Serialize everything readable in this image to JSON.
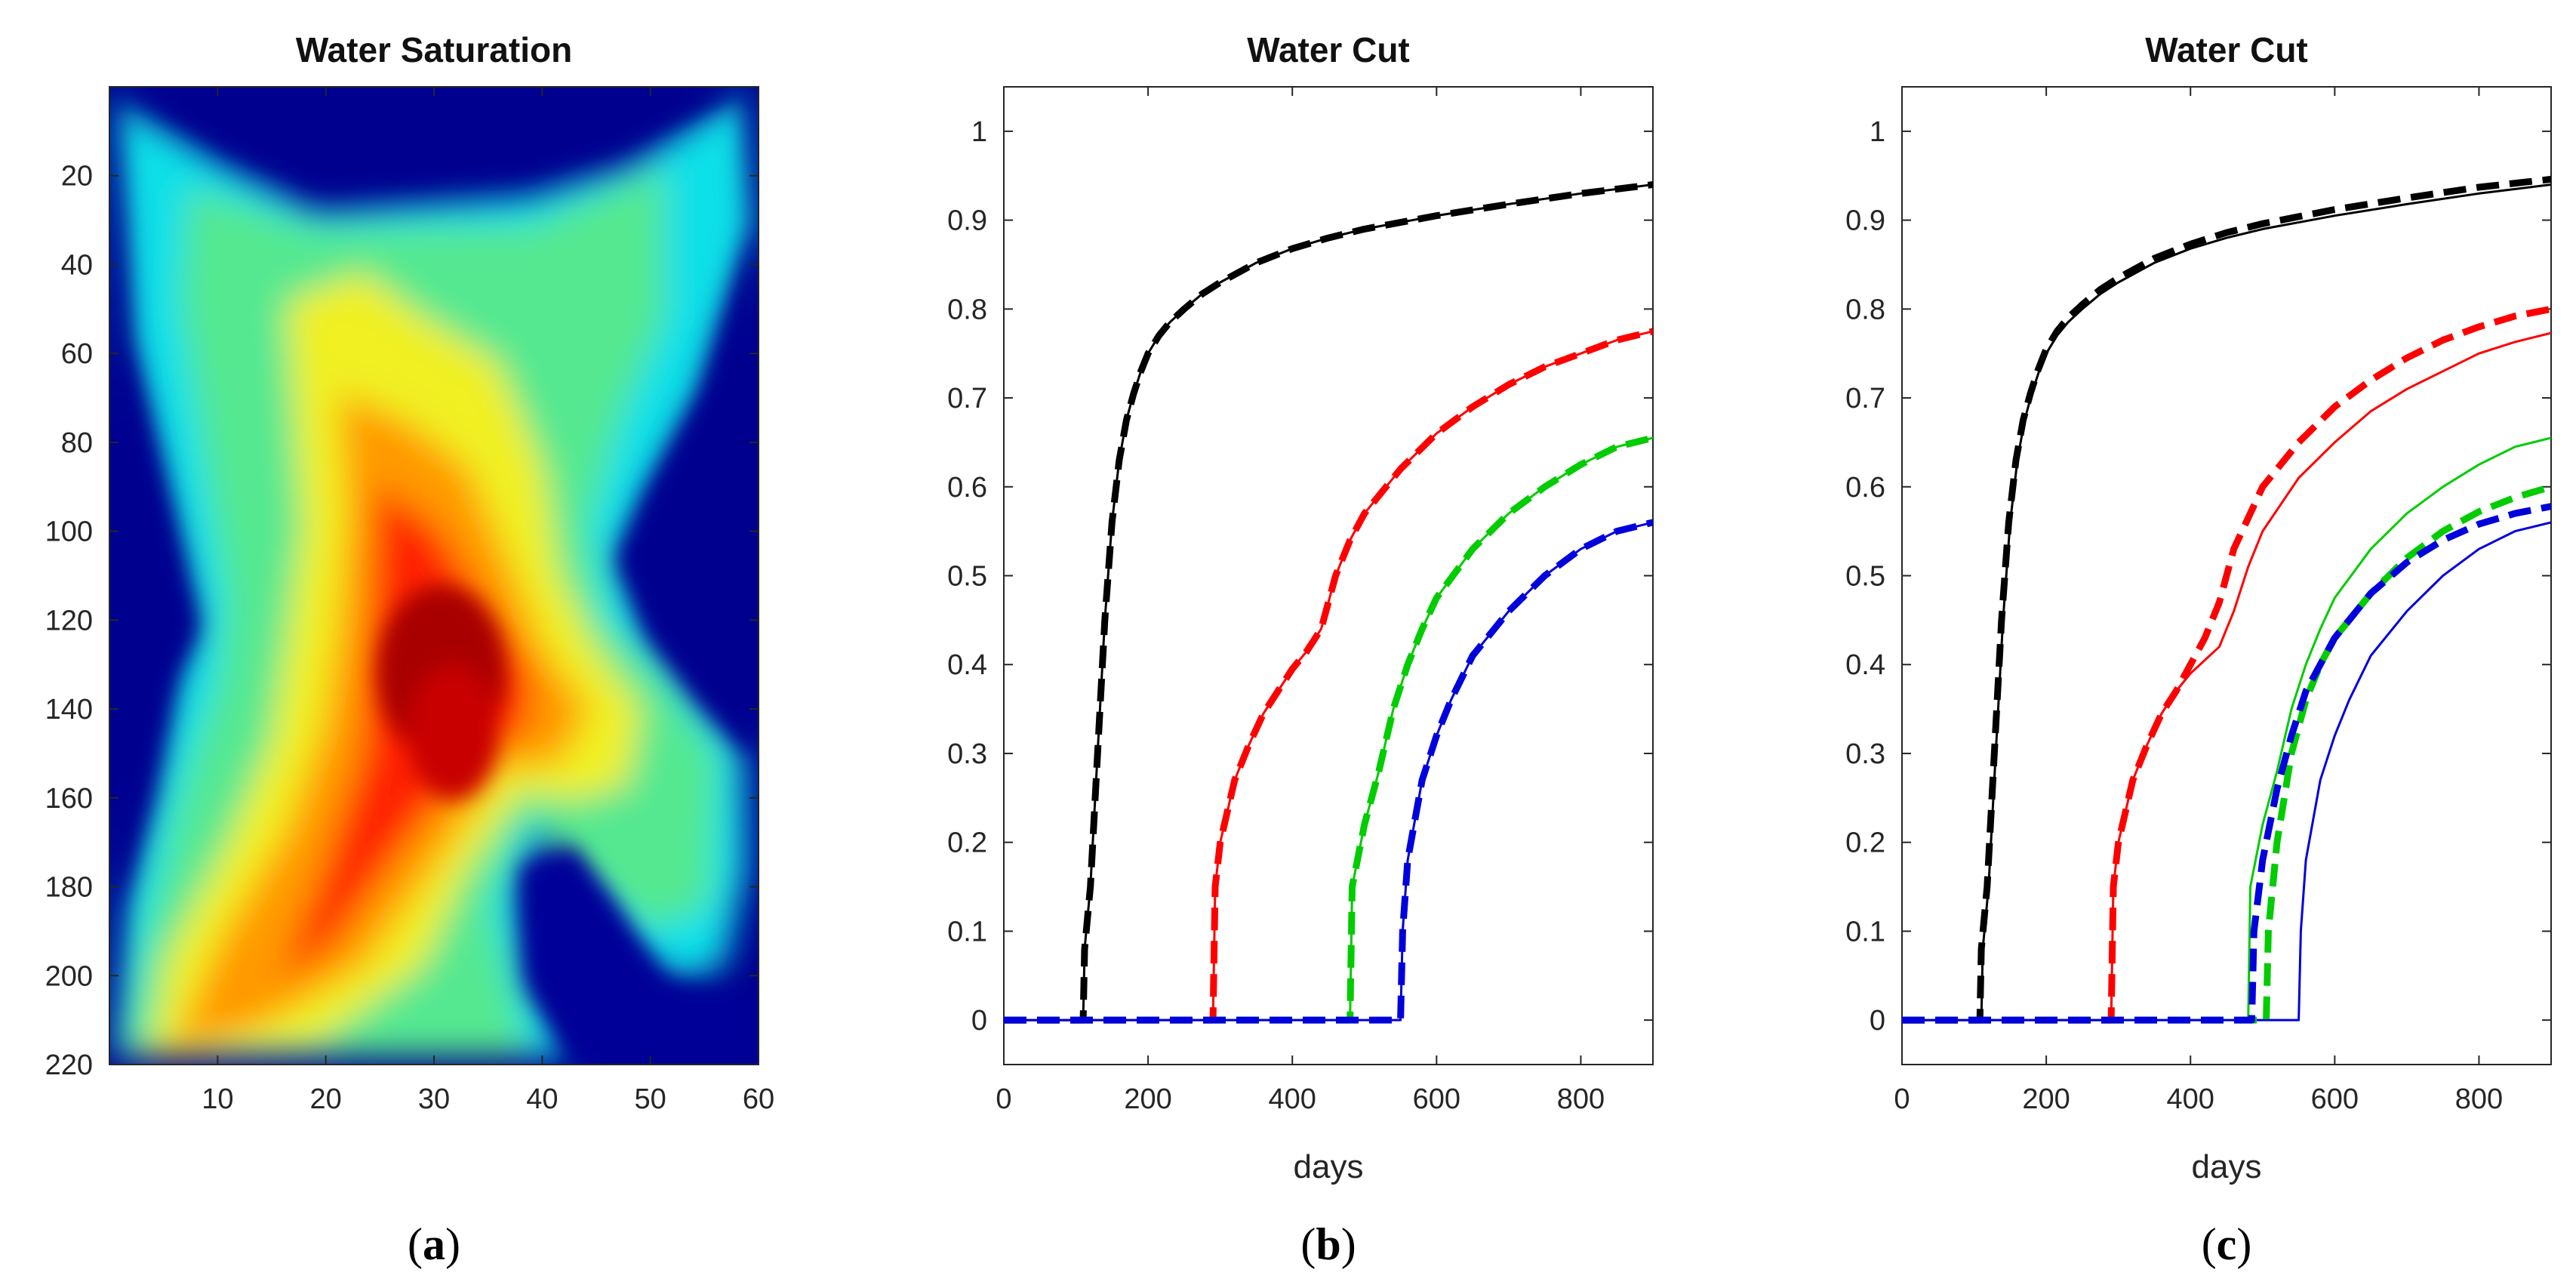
{
  "figure": {
    "captions": [
      "a",
      "b",
      "c"
    ]
  },
  "chart_data": [
    {
      "type": "heatmap",
      "title": "Water Saturation",
      "xlabel": "",
      "ylabel": "",
      "xlim": [
        0,
        60
      ],
      "ylim": [
        220,
        0
      ],
      "x_ticks": [
        10,
        20,
        30,
        40,
        50,
        60
      ],
      "y_ticks": [
        20,
        40,
        60,
        80,
        100,
        120,
        140,
        160,
        180,
        200,
        220
      ],
      "colormap": "jet",
      "grid_size": [
        60,
        220
      ]
    },
    {
      "type": "line",
      "title": "Water Cut",
      "xlabel": "days",
      "ylabel": "",
      "xlim": [
        0,
        900
      ],
      "ylim": [
        -0.05,
        1.05
      ],
      "x_ticks": [
        0,
        200,
        400,
        600,
        800
      ],
      "y_ticks": [
        0,
        0.1,
        0.2,
        0.3,
        0.4,
        0.5,
        0.6,
        0.7,
        0.8,
        0.9,
        1
      ],
      "series": [
        {
          "name": "black-reference",
          "color": "#000000",
          "style": "solid",
          "x": [
            0,
            110,
            112,
            120,
            130,
            140,
            150,
            160,
            170,
            180,
            190,
            200,
            215,
            230,
            250,
            275,
            300,
            350,
            400,
            450,
            500,
            600,
            700,
            800,
            900
          ],
          "y": [
            0,
            0,
            0.08,
            0.15,
            0.3,
            0.45,
            0.56,
            0.63,
            0.675,
            0.705,
            0.73,
            0.75,
            0.77,
            0.785,
            0.8,
            0.817,
            0.83,
            0.852,
            0.868,
            0.88,
            0.89,
            0.905,
            0.918,
            0.93,
            0.94
          ]
        },
        {
          "name": "black-predicted",
          "color": "#000000",
          "style": "dashed",
          "x": [
            0,
            110,
            112,
            120,
            130,
            140,
            150,
            160,
            170,
            180,
            190,
            200,
            215,
            230,
            250,
            275,
            300,
            350,
            400,
            450,
            500,
            600,
            700,
            800,
            900
          ],
          "y": [
            0,
            0,
            0.08,
            0.15,
            0.3,
            0.45,
            0.56,
            0.63,
            0.675,
            0.705,
            0.73,
            0.75,
            0.77,
            0.785,
            0.8,
            0.817,
            0.83,
            0.852,
            0.868,
            0.88,
            0.89,
            0.905,
            0.918,
            0.93,
            0.94
          ]
        },
        {
          "name": "red-reference",
          "color": "#ff0000",
          "style": "solid",
          "x": [
            0,
            290,
            293,
            300,
            320,
            340,
            360,
            380,
            400,
            420,
            440,
            460,
            480,
            500,
            550,
            600,
            650,
            700,
            750,
            800,
            850,
            900
          ],
          "y": [
            0,
            0,
            0.15,
            0.2,
            0.27,
            0.31,
            0.345,
            0.37,
            0.395,
            0.415,
            0.44,
            0.5,
            0.54,
            0.57,
            0.62,
            0.66,
            0.69,
            0.715,
            0.735,
            0.75,
            0.765,
            0.775
          ]
        },
        {
          "name": "red-predicted",
          "color": "#ff0000",
          "style": "dashed",
          "x": [
            0,
            290,
            293,
            300,
            320,
            340,
            360,
            380,
            400,
            420,
            440,
            460,
            480,
            500,
            550,
            600,
            650,
            700,
            750,
            800,
            850,
            900
          ],
          "y": [
            0,
            0,
            0.15,
            0.2,
            0.27,
            0.31,
            0.345,
            0.37,
            0.395,
            0.415,
            0.44,
            0.5,
            0.54,
            0.57,
            0.62,
            0.66,
            0.69,
            0.715,
            0.735,
            0.75,
            0.765,
            0.775
          ]
        },
        {
          "name": "green-reference",
          "color": "#00cc00",
          "style": "solid",
          "x": [
            0,
            480,
            483,
            500,
            520,
            540,
            560,
            580,
            600,
            650,
            700,
            750,
            800,
            850,
            900
          ],
          "y": [
            0,
            0,
            0.15,
            0.22,
            0.28,
            0.35,
            0.4,
            0.44,
            0.475,
            0.53,
            0.57,
            0.6,
            0.625,
            0.645,
            0.655
          ]
        },
        {
          "name": "green-predicted",
          "color": "#00cc00",
          "style": "dashed",
          "x": [
            0,
            480,
            483,
            500,
            520,
            540,
            560,
            580,
            600,
            650,
            700,
            750,
            800,
            850,
            900
          ],
          "y": [
            0,
            0,
            0.15,
            0.22,
            0.28,
            0.35,
            0.4,
            0.44,
            0.475,
            0.53,
            0.57,
            0.6,
            0.625,
            0.645,
            0.655
          ]
        },
        {
          "name": "blue-reference",
          "color": "#0000dd",
          "style": "solid",
          "x": [
            0,
            550,
            553,
            560,
            580,
            600,
            620,
            650,
            700,
            750,
            800,
            850,
            900
          ],
          "y": [
            0,
            0,
            0.1,
            0.18,
            0.27,
            0.32,
            0.36,
            0.41,
            0.46,
            0.5,
            0.53,
            0.55,
            0.56
          ]
        },
        {
          "name": "blue-predicted",
          "color": "#0000dd",
          "style": "dashed",
          "x": [
            0,
            550,
            553,
            560,
            580,
            600,
            620,
            650,
            700,
            750,
            800,
            850,
            900
          ],
          "y": [
            0,
            0,
            0.1,
            0.18,
            0.27,
            0.32,
            0.36,
            0.41,
            0.46,
            0.5,
            0.53,
            0.55,
            0.56
          ]
        }
      ]
    },
    {
      "type": "line",
      "title": "Water Cut",
      "xlabel": "days",
      "ylabel": "",
      "xlim": [
        0,
        900
      ],
      "ylim": [
        -0.05,
        1.05
      ],
      "x_ticks": [
        0,
        200,
        400,
        600,
        800
      ],
      "y_ticks": [
        0,
        0.1,
        0.2,
        0.3,
        0.4,
        0.5,
        0.6,
        0.7,
        0.8,
        0.9,
        1
      ],
      "series": [
        {
          "name": "black-reference",
          "color": "#000000",
          "style": "solid",
          "x": [
            0,
            110,
            112,
            120,
            130,
            140,
            150,
            160,
            170,
            180,
            190,
            200,
            215,
            230,
            250,
            275,
            300,
            350,
            400,
            450,
            500,
            600,
            700,
            800,
            900
          ],
          "y": [
            0,
            0,
            0.08,
            0.15,
            0.3,
            0.45,
            0.56,
            0.63,
            0.675,
            0.705,
            0.73,
            0.75,
            0.77,
            0.785,
            0.8,
            0.817,
            0.83,
            0.852,
            0.868,
            0.88,
            0.89,
            0.905,
            0.918,
            0.93,
            0.94
          ]
        },
        {
          "name": "black-predicted",
          "color": "#000000",
          "style": "dashed",
          "x": [
            0,
            108,
            110,
            118,
            128,
            138,
            148,
            158,
            168,
            178,
            188,
            200,
            215,
            230,
            250,
            275,
            300,
            350,
            400,
            450,
            500,
            600,
            700,
            800,
            900
          ],
          "y": [
            0,
            0,
            0.08,
            0.15,
            0.3,
            0.45,
            0.56,
            0.63,
            0.675,
            0.705,
            0.73,
            0.755,
            0.775,
            0.79,
            0.805,
            0.822,
            0.835,
            0.857,
            0.873,
            0.886,
            0.896,
            0.912,
            0.925,
            0.937,
            0.946
          ]
        },
        {
          "name": "red-reference",
          "color": "#ff0000",
          "style": "solid",
          "x": [
            0,
            290,
            293,
            300,
            320,
            340,
            360,
            380,
            400,
            420,
            440,
            460,
            480,
            500,
            550,
            600,
            650,
            700,
            750,
            800,
            850,
            900
          ],
          "y": [
            0,
            0,
            0.15,
            0.2,
            0.27,
            0.31,
            0.345,
            0.37,
            0.39,
            0.405,
            0.42,
            0.46,
            0.51,
            0.55,
            0.61,
            0.65,
            0.685,
            0.71,
            0.73,
            0.75,
            0.763,
            0.773
          ]
        },
        {
          "name": "red-predicted",
          "color": "#ff0000",
          "style": "dashed",
          "x": [
            0,
            290,
            293,
            300,
            320,
            340,
            360,
            380,
            400,
            420,
            440,
            460,
            480,
            500,
            550,
            600,
            650,
            700,
            750,
            800,
            850,
            900
          ],
          "y": [
            0,
            0,
            0.15,
            0.2,
            0.27,
            0.31,
            0.345,
            0.37,
            0.4,
            0.43,
            0.47,
            0.53,
            0.565,
            0.6,
            0.65,
            0.69,
            0.72,
            0.745,
            0.765,
            0.78,
            0.792,
            0.8
          ]
        },
        {
          "name": "green-reference",
          "color": "#00cc00",
          "style": "solid",
          "x": [
            0,
            480,
            483,
            500,
            520,
            540,
            560,
            580,
            600,
            650,
            700,
            750,
            800,
            850,
            900
          ],
          "y": [
            0,
            0,
            0.15,
            0.22,
            0.28,
            0.35,
            0.4,
            0.44,
            0.475,
            0.53,
            0.57,
            0.6,
            0.625,
            0.645,
            0.655
          ]
        },
        {
          "name": "green-predicted",
          "color": "#00cc00",
          "style": "dashed",
          "x": [
            0,
            505,
            508,
            520,
            540,
            560,
            580,
            600,
            650,
            700,
            750,
            800,
            850,
            900
          ],
          "y": [
            0,
            0,
            0.1,
            0.2,
            0.3,
            0.36,
            0.4,
            0.43,
            0.48,
            0.52,
            0.55,
            0.572,
            0.588,
            0.6
          ]
        },
        {
          "name": "blue-reference",
          "color": "#0000dd",
          "style": "solid",
          "x": [
            0,
            550,
            553,
            560,
            580,
            600,
            620,
            650,
            700,
            750,
            800,
            850,
            900
          ],
          "y": [
            0,
            0,
            0.1,
            0.18,
            0.27,
            0.32,
            0.36,
            0.41,
            0.46,
            0.5,
            0.53,
            0.55,
            0.56
          ]
        },
        {
          "name": "blue-predicted",
          "color": "#0000dd",
          "style": "dashed",
          "x": [
            0,
            485,
            488,
            500,
            520,
            540,
            560,
            580,
            600,
            650,
            700,
            750,
            800,
            850,
            900
          ],
          "y": [
            0,
            0,
            0.1,
            0.18,
            0.26,
            0.32,
            0.37,
            0.4,
            0.43,
            0.48,
            0.515,
            0.54,
            0.558,
            0.57,
            0.578
          ]
        }
      ]
    }
  ]
}
